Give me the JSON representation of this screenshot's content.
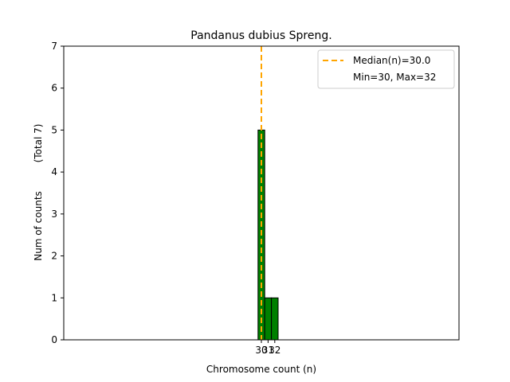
{
  "chart_data": {
    "type": "bar",
    "title": "Pandanus dubius Spreng.",
    "xlabel": "Chromosome count (n)",
    "ylabel_lines": [
      "Num of counts",
      "(Total 7)"
    ],
    "x": [
      30,
      31,
      32
    ],
    "x_tick_labels": [
      "30",
      "31",
      "32"
    ],
    "values": [
      5,
      1,
      1
    ],
    "bar_color": "#008000",
    "bar_edge_color": "#000000",
    "xlim": [
      0.5,
      59.5
    ],
    "ylim": [
      0,
      7
    ],
    "y_ticks": [
      0,
      1,
      2,
      3,
      4,
      5,
      6,
      7
    ],
    "median": 30.0,
    "median_color": "#ffa500",
    "legend": {
      "position": "top-right",
      "entries": [
        "Median(n)=30.0",
        "Min=30, Max=32"
      ]
    },
    "grid": false
  }
}
